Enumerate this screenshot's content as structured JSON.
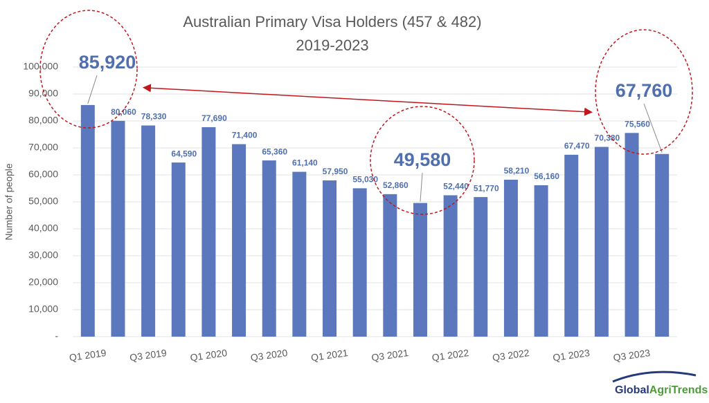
{
  "chart_data": {
    "type": "bar",
    "title": [
      "Australian Primary Visa Holders (457 & 482)",
      "2019-2023"
    ],
    "y_label": "Number of people",
    "categories": [
      "Q1 2019",
      null,
      "Q3 2019",
      null,
      "Q1 2020",
      null,
      "Q3 2020",
      null,
      "Q1 2021",
      null,
      "Q3 2021",
      null,
      "Q1 2022",
      null,
      "Q3 2022",
      null,
      "Q1 2023",
      null,
      "Q3 2023",
      null
    ],
    "values": [
      85920,
      80060,
      78330,
      64590,
      77690,
      71400,
      65360,
      61140,
      57950,
      55030,
      52860,
      49580,
      52440,
      51770,
      58210,
      56160,
      67470,
      70380,
      75560,
      67760
    ],
    "value_labels": [
      "85,920",
      "80,060",
      "78,330",
      "64,590",
      "77,690",
      "71,400",
      "65,360",
      "61,140",
      "57,950",
      "55,030",
      "52,860",
      "49,580",
      "52,440",
      "51,770",
      "58,210",
      "56,160",
      "67,470",
      "70,380",
      "75,560",
      "67,760"
    ],
    "color": "#5b77bd",
    "ylim": [
      0,
      100000
    ],
    "yticks": [
      {
        "value": 0,
        "label": "-"
      },
      {
        "value": 10000,
        "label": "10,000"
      },
      {
        "value": 20000,
        "label": "20,000"
      },
      {
        "value": 30000,
        "label": "30,000"
      },
      {
        "value": 40000,
        "label": "40,000"
      },
      {
        "value": 50000,
        "label": "50,000"
      },
      {
        "value": 60000,
        "label": "60,000"
      },
      {
        "value": 70000,
        "label": "70,000"
      },
      {
        "value": 80000,
        "label": "80,000"
      },
      {
        "value": 90000,
        "label": "90,000"
      },
      {
        "value": 100000,
        "label": "100,000"
      }
    ],
    "grid": true
  },
  "logo": {
    "first": "Global",
    "second": "AgriTrends"
  }
}
